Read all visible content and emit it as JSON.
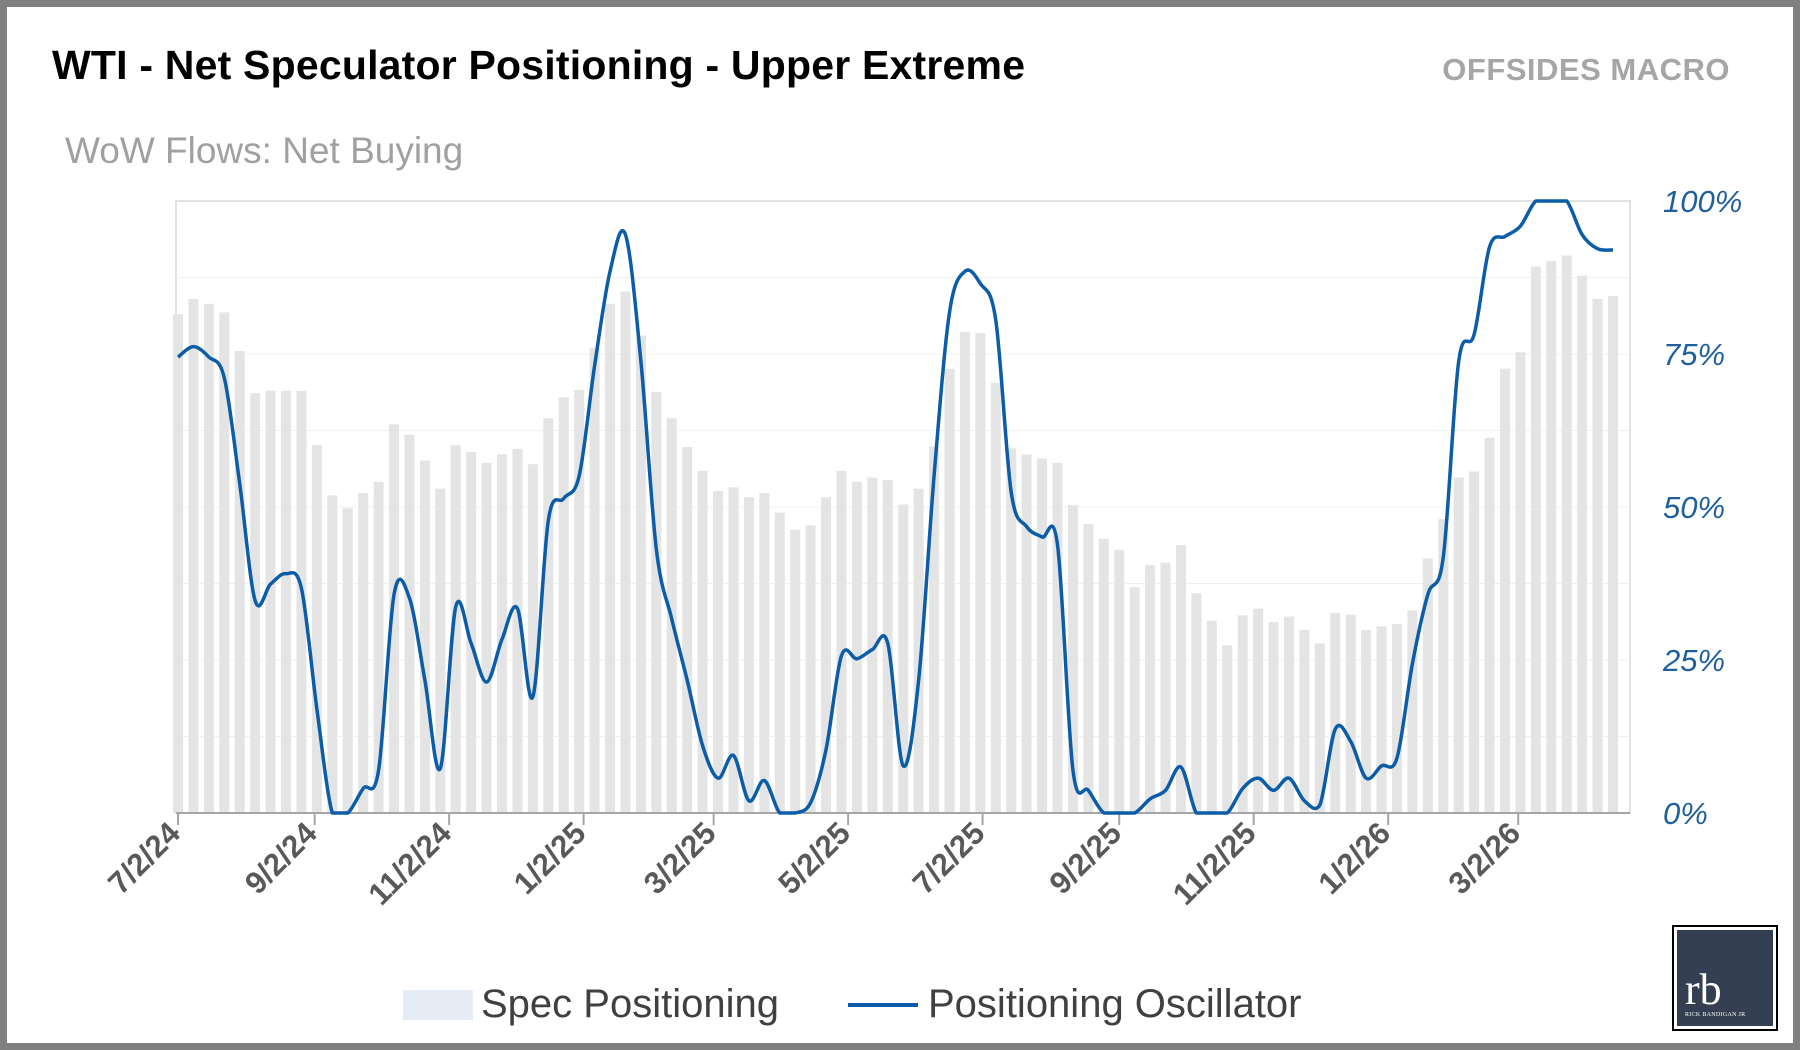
{
  "header": {
    "title": "WTI - Net Speculator Positioning - Upper Extreme",
    "brand": "OFFSIDES MACRO",
    "subtitle": "WoW Flows: Net Buying"
  },
  "logo": {
    "monogram": "rb",
    "name": "RICK BANDIGAN JR"
  },
  "chart_data": {
    "type": "bar+line",
    "title": "WTI - Net Speculator Positioning - Upper Extreme",
    "subtitle": "WoW Flows: Net Buying",
    "ylim": [
      0,
      100
    ],
    "y_axis_side": "right",
    "y_ticks": [
      "0%",
      "25%",
      "50%",
      "75%",
      "100%"
    ],
    "y_tick_values": [
      0,
      25,
      50,
      75,
      100
    ],
    "x_ticks": [
      "7/2/24",
      "9/2/24",
      "11/2/24",
      "1/2/25",
      "3/2/25",
      "5/2/25",
      "7/2/25",
      "9/2/25",
      "11/2/25",
      "1/2/26",
      "3/2/26"
    ],
    "x_tick_dates": [
      "2024-07-02",
      "2024-09-02",
      "2024-11-02",
      "2025-01-02",
      "2025-03-02",
      "2025-05-02",
      "2025-07-02",
      "2025-09-02",
      "2025-11-02",
      "2026-01-02",
      "2026-03-02"
    ],
    "grid": true,
    "legend_placement": "bottom",
    "colors": {
      "bars": "#e4e4e4",
      "bar_legend": "#e6ecf5",
      "line": "#0b5da8",
      "y_labels": "#1f5f9e",
      "x_labels": "#595959"
    },
    "x": [
      "2024-07-02",
      "2024-07-09",
      "2024-07-16",
      "2024-07-23",
      "2024-07-30",
      "2024-08-06",
      "2024-08-13",
      "2024-08-20",
      "2024-08-27",
      "2024-09-03",
      "2024-09-10",
      "2024-09-17",
      "2024-09-24",
      "2024-10-01",
      "2024-10-08",
      "2024-10-15",
      "2024-10-22",
      "2024-10-29",
      "2024-11-05",
      "2024-11-12",
      "2024-11-19",
      "2024-11-26",
      "2024-12-03",
      "2024-12-10",
      "2024-12-17",
      "2024-12-24",
      "2024-12-31",
      "2025-01-07",
      "2025-01-14",
      "2025-01-21",
      "2025-01-28",
      "2025-02-04",
      "2025-02-11",
      "2025-02-18",
      "2025-02-25",
      "2025-03-04",
      "2025-03-11",
      "2025-03-18",
      "2025-03-25",
      "2025-04-01",
      "2025-04-08",
      "2025-04-15",
      "2025-04-22",
      "2025-04-29",
      "2025-05-06",
      "2025-05-13",
      "2025-05-20",
      "2025-05-27",
      "2025-06-03",
      "2025-06-10",
      "2025-06-17",
      "2025-06-24",
      "2025-07-01",
      "2025-07-08",
      "2025-07-15",
      "2025-07-22",
      "2025-07-29",
      "2025-08-05",
      "2025-08-12",
      "2025-08-19",
      "2025-08-26",
      "2025-09-02",
      "2025-09-09",
      "2025-09-16",
      "2025-09-23",
      "2025-09-30",
      "2025-10-07",
      "2025-10-14",
      "2025-10-21",
      "2025-10-28",
      "2025-11-04",
      "2025-11-11",
      "2025-11-18",
      "2025-11-25",
      "2025-12-02",
      "2025-12-09",
      "2025-12-16",
      "2025-12-23",
      "2025-12-30",
      "2026-01-06",
      "2026-01-13",
      "2026-01-20",
      "2026-01-27",
      "2026-02-03",
      "2026-02-10",
      "2026-02-17",
      "2026-02-24",
      "2026-03-03",
      "2026-03-10",
      "2026-03-17",
      "2026-03-24",
      "2026-03-31",
      "2026-04-07",
      "2026-04-14"
    ],
    "series": [
      {
        "name": "Spec Positioning",
        "type": "bar",
        "values": [
          81.5,
          84.0,
          83.2,
          81.8,
          75.5,
          68.6,
          69.0,
          69.0,
          69.0,
          60.1,
          51.9,
          49.8,
          52.3,
          54.1,
          63.5,
          61.8,
          57.6,
          53.0,
          60.1,
          59.0,
          57.2,
          58.6,
          59.5,
          57.0,
          64.5,
          67.9,
          69.1,
          76,
          83.2,
          85.2,
          78,
          68.8,
          64.5,
          59.8,
          55.9,
          52.6,
          53.2,
          51.6,
          52.3,
          49.1,
          46.3,
          47.0,
          51.6,
          55.9,
          54.1,
          54.8,
          54.4,
          50.4,
          53.0,
          59.9,
          72.6,
          78.6,
          78.4,
          70.3,
          59.6,
          58.6,
          57.9,
          57.2,
          50.3,
          47.2,
          44.8,
          43.0,
          36.9,
          40.5,
          40.9,
          43.8,
          35.9,
          31.4,
          27.4,
          32.3,
          33.4,
          31.2,
          32.1,
          29.9,
          27.7,
          32.7,
          32.4,
          29.9,
          30.5,
          30.9,
          33.1,
          41.6,
          48,
          54.8,
          55.8,
          61.3,
          72.6,
          75.3,
          89.3,
          90.2,
          91.1,
          87.8,
          84.0,
          84.5
        ]
      },
      {
        "name": "Positioning Oscillator",
        "type": "line",
        "values": [
          74.5,
          76.2,
          74.5,
          71.1,
          53.8,
          34.7,
          37.4,
          39.1,
          36.7,
          17.0,
          0,
          0,
          4,
          7,
          35.7,
          35.1,
          21.7,
          7.3,
          33.7,
          27.7,
          21.4,
          28.4,
          33.4,
          19,
          47.8,
          51.4,
          55.1,
          73.1,
          88.5,
          94.5,
          73.8,
          43.1,
          31.7,
          21.7,
          11,
          5.7,
          9.4,
          2,
          5.3,
          0,
          0,
          1.7,
          10.4,
          25.7,
          25.2,
          26.7,
          27.7,
          7.7,
          21.7,
          55.1,
          81.8,
          88.5,
          86.5,
          80.5,
          52.4,
          46.8,
          45.1,
          43.8,
          7,
          3.7,
          0,
          0,
          0,
          2.3,
          3.7,
          7.5,
          0,
          0,
          0,
          4,
          5.7,
          3.7,
          5.7,
          2,
          1.3,
          13.7,
          11.7,
          5.7,
          7.7,
          9,
          24.4,
          35.7,
          41.8,
          73.8,
          78.2,
          92.5,
          94.2,
          95.9,
          100,
          100,
          100,
          94.5,
          92.2,
          92
        ]
      }
    ]
  }
}
